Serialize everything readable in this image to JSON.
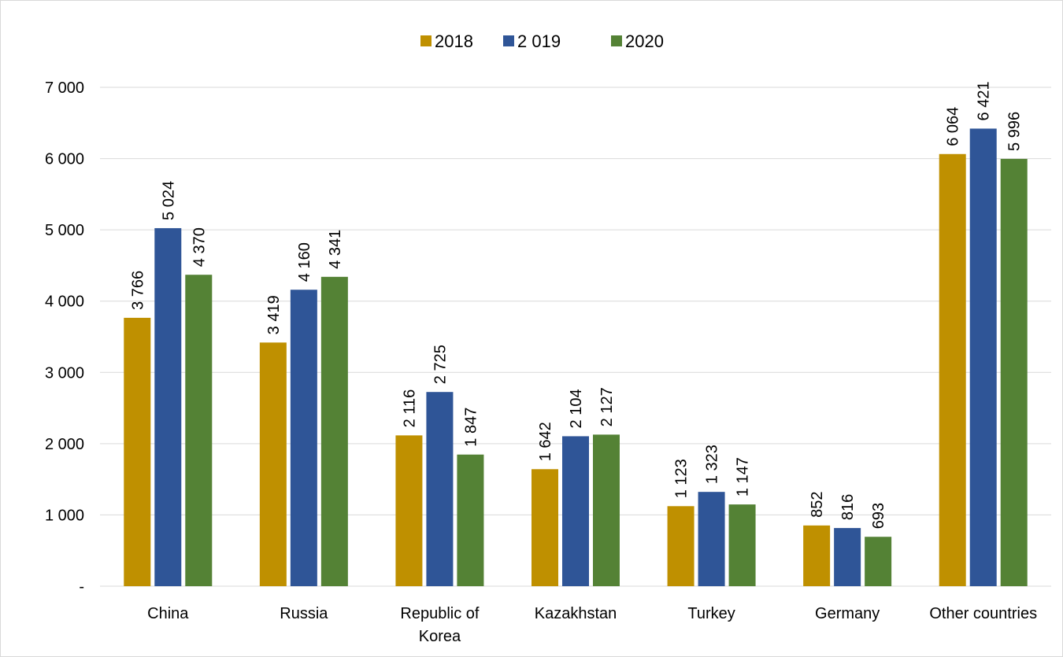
{
  "chart_data": {
    "type": "bar",
    "title": "",
    "xlabel": "",
    "ylabel": "",
    "categories": [
      [
        "China"
      ],
      [
        "Russia"
      ],
      [
        "Republic of",
        "Korea"
      ],
      [
        "Kazakhstan"
      ],
      [
        "Turkey"
      ],
      [
        "Germany"
      ],
      [
        "Other countries"
      ]
    ],
    "series": [
      {
        "name": "2018",
        "color": "#bf9000",
        "values": [
          3766,
          3419,
          2116,
          1642,
          1123,
          852,
          6064
        ],
        "labels": [
          "3 766",
          "3 419",
          "2 116",
          "1 642",
          "1 123",
          "852",
          "6 064"
        ]
      },
      {
        "name": "2 019",
        "color": "#2f5597",
        "values": [
          5024,
          4160,
          2725,
          2104,
          1323,
          816,
          6421
        ],
        "labels": [
          "5 024",
          "4 160",
          "2 725",
          "2 104",
          "1 323",
          "816",
          "6 421"
        ]
      },
      {
        "name": "2020",
        "color": "#548235",
        "values": [
          4370,
          4341,
          1847,
          2127,
          1147,
          693,
          5996
        ],
        "labels": [
          "4 370",
          "4 341",
          "1 847",
          "2 127",
          "1 147",
          "693",
          "5 996"
        ]
      }
    ],
    "ylim": [
      0,
      7000
    ],
    "yticks": [
      0,
      1000,
      2000,
      3000,
      4000,
      5000,
      6000,
      7000
    ],
    "ytick_labels": [
      "-",
      "1 000",
      "2 000",
      "3 000",
      "4 000",
      "5 000",
      "6 000",
      "7 000"
    ],
    "grid": true,
    "legend_position": "top-center",
    "value_labels": "rotated-vertical"
  }
}
